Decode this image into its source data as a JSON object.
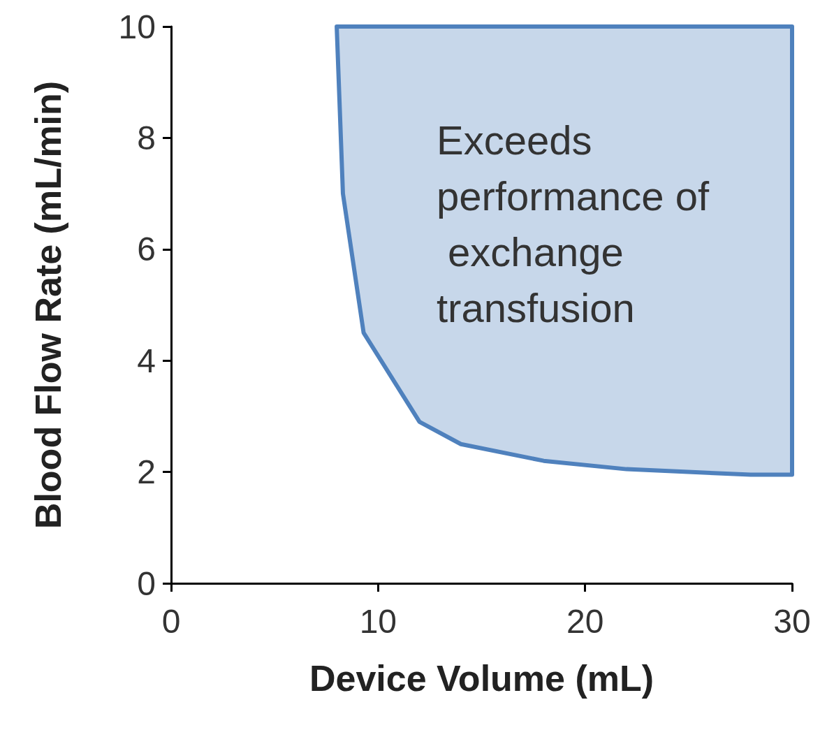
{
  "chart_data": {
    "type": "area",
    "xlabel": "Device Volume (mL)",
    "ylabel": "Blood Flow Rate (mL/min)",
    "series": [
      {
        "color": "#4f81bd",
        "x": [
          8,
          8.3,
          9.3,
          12,
          14,
          18,
          22,
          28,
          30,
          30
        ],
        "values": [
          10,
          7,
          4.5,
          2.9,
          2.5,
          2.2,
          2.05,
          1.95,
          1.95,
          10
        ]
      }
    ],
    "annotations": [
      "Exceeds performance of exchange transfusion"
    ],
    "xlim": [
      0,
      30
    ],
    "xticks": [
      0,
      10,
      20,
      30
    ],
    "ylim": [
      0,
      10
    ],
    "yticks": [
      0,
      2,
      4,
      6,
      8,
      10
    ],
    "grid": false
  }
}
